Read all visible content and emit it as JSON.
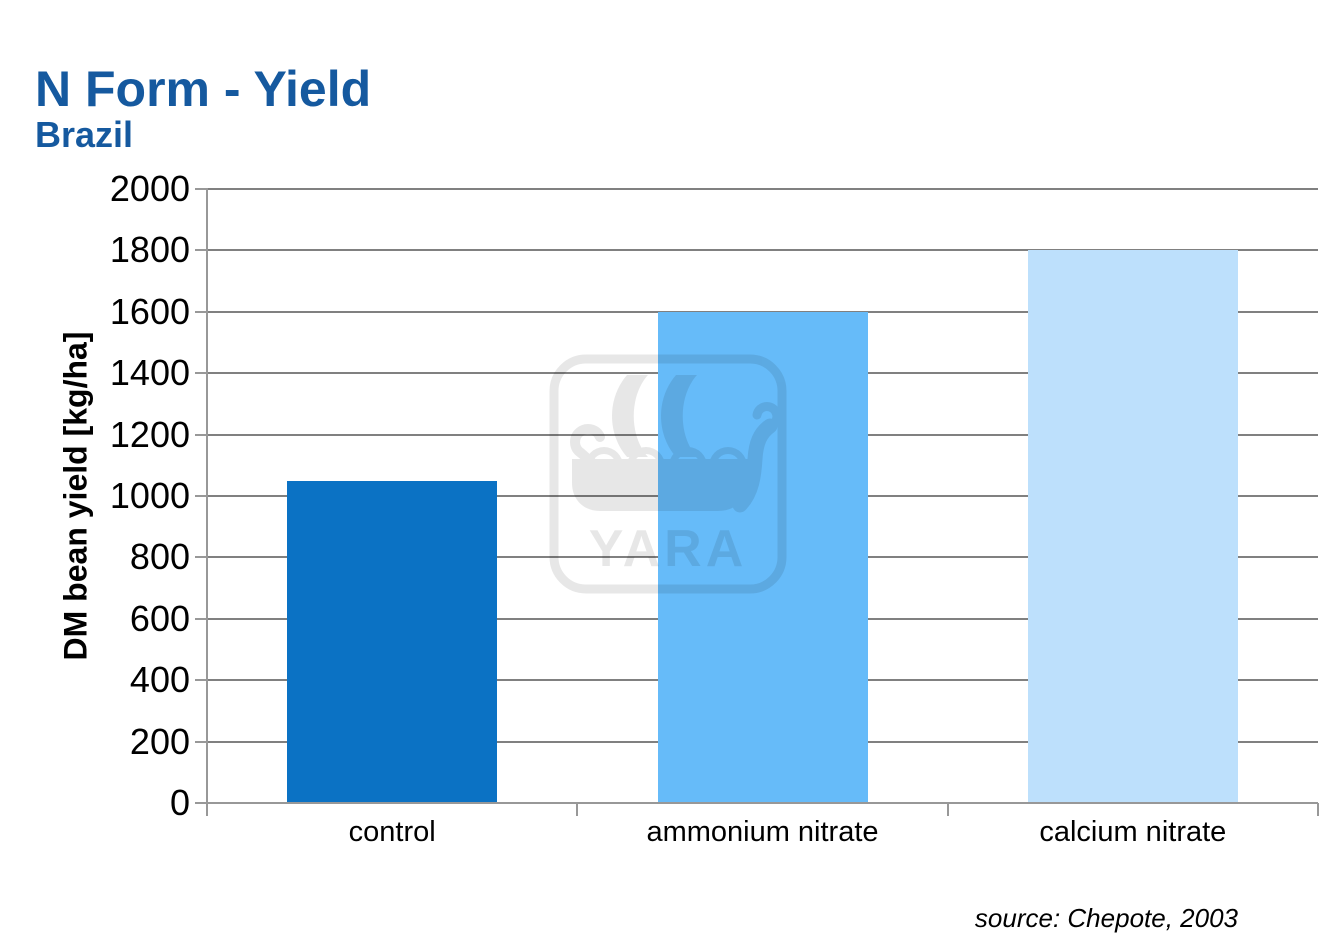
{
  "header": {
    "title": "N Form - Yield",
    "subtitle": "Brazil",
    "title_color": "#15599F"
  },
  "watermark": {
    "label": "YARA"
  },
  "source_note": "source: Chepote, 2003",
  "chart_data": {
    "type": "bar",
    "title": "N Form - Yield (Brazil)",
    "categories": [
      "control",
      "ammonium nitrate",
      "calcium nitrate"
    ],
    "values": [
      1050,
      1600,
      1800
    ],
    "bar_colors": [
      "#0B72C4",
      "#66BBF9",
      "#BDE0FC"
    ],
    "xlabel": "",
    "ylabel": "DM bean yield [kg/ha]",
    "ylim": [
      0,
      2000
    ],
    "ytick_step": 200,
    "grid": "horizontal-gridlines-on",
    "legend": "none",
    "annotation": "source: Chepote, 2003"
  }
}
